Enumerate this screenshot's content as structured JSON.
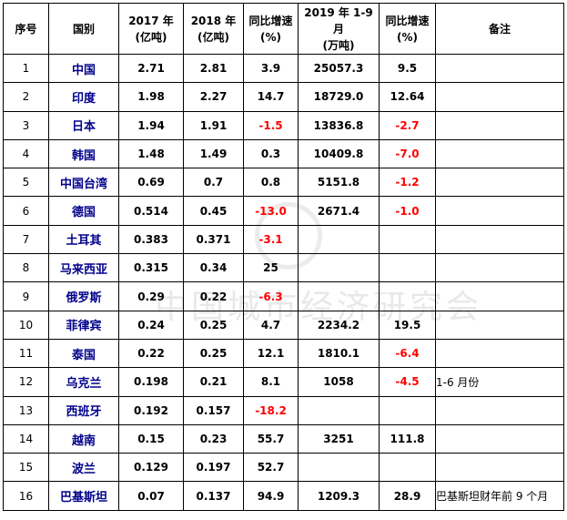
{
  "headers": [
    "序号",
    "国别",
    "2017 年\n(亿吨)",
    "2018 年\n(亿吨)",
    "同比增速\n(%)",
    "2019 年 1-9 月\n(万吨)",
    "同比增速\n(%)",
    "备注"
  ],
  "rows": [
    {
      "no": "1",
      "country": "中国",
      "y2017": "2.71",
      "y2018": "2.81",
      "growth1": "3.9",
      "y2019": "25057.3",
      "growth2": "9.5",
      "note": ""
    },
    {
      "no": "2",
      "country": "印度",
      "y2017": "1.98",
      "y2018": "2.27",
      "growth1": "14.7",
      "y2019": "18729.0",
      "growth2": "12.64",
      "note": ""
    },
    {
      "no": "3",
      "country": "日本",
      "y2017": "1.94",
      "y2018": "1.91",
      "growth1": "-1.5",
      "y2019": "13836.8",
      "growth2": "-2.7",
      "note": ""
    },
    {
      "no": "4",
      "country": "韩国",
      "y2017": "1.48",
      "y2018": "1.49",
      "growth1": "0.3",
      "y2019": "10409.8",
      "growth2": "-7.0",
      "note": ""
    },
    {
      "no": "5",
      "country": "中国台湾",
      "y2017": "0.69",
      "y2018": "0.7",
      "growth1": "0.8",
      "y2019": "5151.8",
      "growth2": "-1.2",
      "note": ""
    },
    {
      "no": "6",
      "country": "德国",
      "y2017": "0.514",
      "y2018": "0.45",
      "growth1": "-13.0",
      "y2019": "2671.4",
      "growth2": "-1.0",
      "note": ""
    },
    {
      "no": "7",
      "country": "土耳其",
      "y2017": "0.383",
      "y2018": "0.371",
      "growth1": "-3.1",
      "y2019": "",
      "growth2": "",
      "note": ""
    },
    {
      "no": "8",
      "country": "马来西亚",
      "y2017": "0.315",
      "y2018": "0.34",
      "growth1": "25",
      "y2019": "",
      "growth2": "",
      "note": ""
    },
    {
      "no": "9",
      "country": "俄罗斯",
      "y2017": "0.29",
      "y2018": "0.22",
      "growth1": "-6.3",
      "y2019": "",
      "growth2": "",
      "note": ""
    },
    {
      "no": "10",
      "country": "菲律宾",
      "y2017": "0.24",
      "y2018": "0.25",
      "growth1": "4.7",
      "y2019": "2234.2",
      "growth2": "19.5",
      "note": ""
    },
    {
      "no": "11",
      "country": "泰国",
      "y2017": "0.22",
      "y2018": "0.25",
      "growth1": "12.1",
      "y2019": "1810.1",
      "growth2": "-6.4",
      "note": ""
    },
    {
      "no": "12",
      "country": "乌克兰",
      "y2017": "0.198",
      "y2018": "0.21",
      "growth1": "8.1",
      "y2019": "1058",
      "growth2": "-4.5",
      "note": "1-6 月份"
    },
    {
      "no": "13",
      "country": "西班牙",
      "y2017": "0.192",
      "y2018": "0.157",
      "growth1": "-18.2",
      "y2019": "",
      "growth2": "",
      "note": ""
    },
    {
      "no": "14",
      "country": "越南",
      "y2017": "0.15",
      "y2018": "0.23",
      "growth1": "55.7",
      "y2019": "3251",
      "growth2": "111.8",
      "note": ""
    },
    {
      "no": "15",
      "country": "波兰",
      "y2017": "0.129",
      "y2018": "0.197",
      "growth1": "52.7",
      "y2019": "",
      "growth2": "",
      "note": ""
    },
    {
      "no": "16",
      "country": "巴基斯坦",
      "y2017": "0.07",
      "y2018": "0.137",
      "growth1": "94.9",
      "y2019": "1209.3",
      "growth2": "28.9",
      "note": "巴基斯坦财年前 9 个月"
    }
  ],
  "watermark": "中国城市经济研究会",
  "colors": {
    "country": "#00008b",
    "negative": "#ff0000"
  }
}
